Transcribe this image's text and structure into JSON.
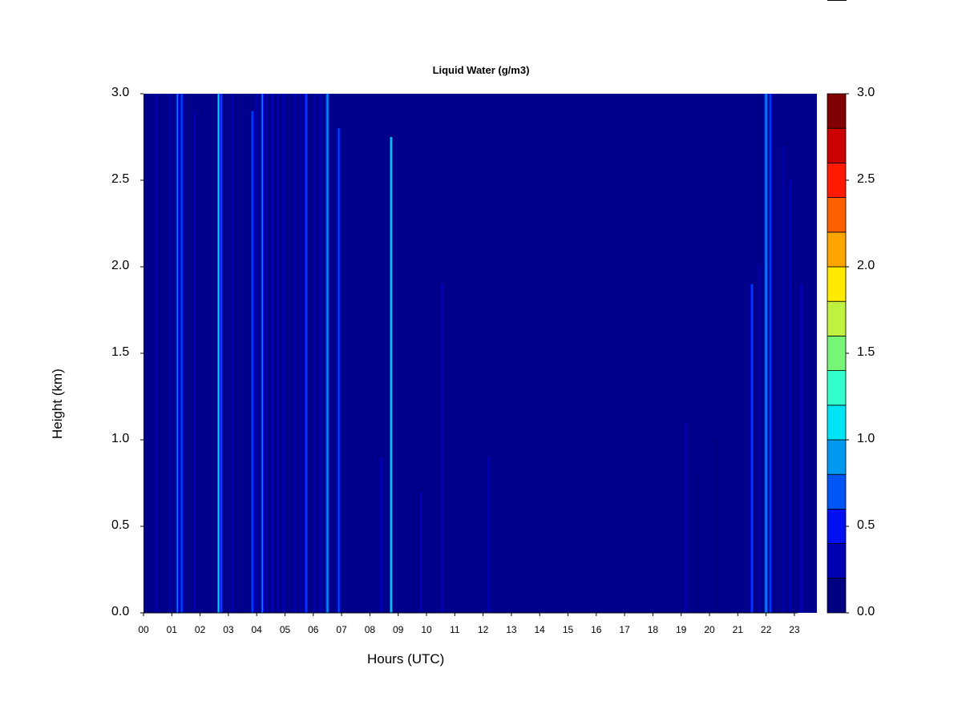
{
  "chart_data": {
    "type": "heatmap",
    "title": "Liquid Water (g/m3)",
    "xlabel": "Hours (UTC)",
    "ylabel": "Height (km)",
    "xlim": [
      0,
      24
    ],
    "ylim": [
      0.0,
      3.0
    ],
    "x_ticks": [
      "00",
      "01",
      "02",
      "03",
      "04",
      "05",
      "06",
      "07",
      "08",
      "09",
      "10",
      "11",
      "12",
      "13",
      "14",
      "15",
      "16",
      "17",
      "18",
      "19",
      "20",
      "21",
      "22",
      "23"
    ],
    "y_ticks": [
      "0.0",
      "0.5",
      "1.0",
      "1.5",
      "2.0",
      "2.5",
      "3.0"
    ],
    "colorbar": {
      "levels": [
        0.0,
        0.2,
        0.4,
        0.6,
        0.8,
        1.0,
        1.2,
        1.4,
        1.6,
        1.8,
        2.0,
        2.2,
        2.4,
        2.6,
        2.8,
        3.0
      ],
      "tick_labels": [
        "0.0",
        "0.5",
        "1.0",
        "1.5",
        "2.0",
        "2.5",
        "3.0"
      ],
      "tick_values": [
        0.0,
        0.5,
        1.0,
        1.5,
        2.0,
        2.5,
        3.0
      ],
      "colors": [
        "#000080",
        "#0000b3",
        "#0010f0",
        "#0055f5",
        "#0099f0",
        "#00e5f5",
        "#33ffcc",
        "#77f577",
        "#c0f040",
        "#ffea00",
        "#ffa500",
        "#ff6000",
        "#ff1a00",
        "#cc0000",
        "#800000"
      ]
    },
    "background_value": 0.1,
    "background_color": "#00008a",
    "streaks": [
      {
        "hour": 0.45,
        "top_km": 3.0,
        "value": 0.2
      },
      {
        "hour": 0.95,
        "top_km": 3.0,
        "value": 0.3
      },
      {
        "hour": 1.2,
        "top_km": 3.0,
        "value": 0.55
      },
      {
        "hour": 1.35,
        "top_km": 3.0,
        "value": 0.45
      },
      {
        "hour": 1.8,
        "top_km": 2.9,
        "value": 0.2
      },
      {
        "hour": 2.65,
        "top_km": 3.0,
        "value": 0.75
      },
      {
        "hour": 2.75,
        "top_km": 3.0,
        "value": 0.4
      },
      {
        "hour": 3.15,
        "top_km": 3.0,
        "value": 0.25
      },
      {
        "hour": 3.85,
        "top_km": 2.9,
        "value": 0.5
      },
      {
        "hour": 4.0,
        "top_km": 3.0,
        "value": 0.3
      },
      {
        "hour": 4.2,
        "top_km": 3.0,
        "value": 0.55
      },
      {
        "hour": 4.35,
        "top_km": 3.0,
        "value": 0.35
      },
      {
        "hour": 4.55,
        "top_km": 3.0,
        "value": 0.3
      },
      {
        "hour": 4.75,
        "top_km": 3.0,
        "value": 0.35
      },
      {
        "hour": 4.95,
        "top_km": 3.0,
        "value": 0.3
      },
      {
        "hour": 5.35,
        "top_km": 3.0,
        "value": 0.35
      },
      {
        "hour": 5.55,
        "top_km": 3.0,
        "value": 0.3
      },
      {
        "hour": 5.75,
        "top_km": 3.0,
        "value": 0.4
      },
      {
        "hour": 6.05,
        "top_km": 3.0,
        "value": 0.3
      },
      {
        "hour": 6.25,
        "top_km": 3.0,
        "value": 0.3
      },
      {
        "hour": 6.5,
        "top_km": 3.0,
        "value": 0.6
      },
      {
        "hour": 6.9,
        "top_km": 2.8,
        "value": 0.4
      },
      {
        "hour": 8.4,
        "top_km": 0.9,
        "value": 0.2
      },
      {
        "hour": 8.75,
        "top_km": 2.75,
        "value": 0.95
      },
      {
        "hour": 9.8,
        "top_km": 0.7,
        "value": 0.2
      },
      {
        "hour": 10.55,
        "top_km": 1.9,
        "value": 0.3
      },
      {
        "hour": 12.2,
        "top_km": 0.9,
        "value": 0.3
      },
      {
        "hour": 19.15,
        "top_km": 1.1,
        "value": 0.2
      },
      {
        "hour": 19.55,
        "top_km": 0.8,
        "value": 0.15
      },
      {
        "hour": 20.25,
        "top_km": 1.0,
        "value": 0.15
      },
      {
        "hour": 21.5,
        "top_km": 1.9,
        "value": 0.45
      },
      {
        "hour": 21.75,
        "top_km": 2.0,
        "value": 0.3
      },
      {
        "hour": 22.0,
        "top_km": 3.0,
        "value": 0.6
      },
      {
        "hour": 22.15,
        "top_km": 3.0,
        "value": 0.5
      },
      {
        "hour": 22.6,
        "top_km": 2.7,
        "value": 0.3
      },
      {
        "hour": 22.85,
        "top_km": 2.5,
        "value": 0.25
      },
      {
        "hour": 23.25,
        "top_km": 1.9,
        "value": 0.2
      }
    ]
  }
}
